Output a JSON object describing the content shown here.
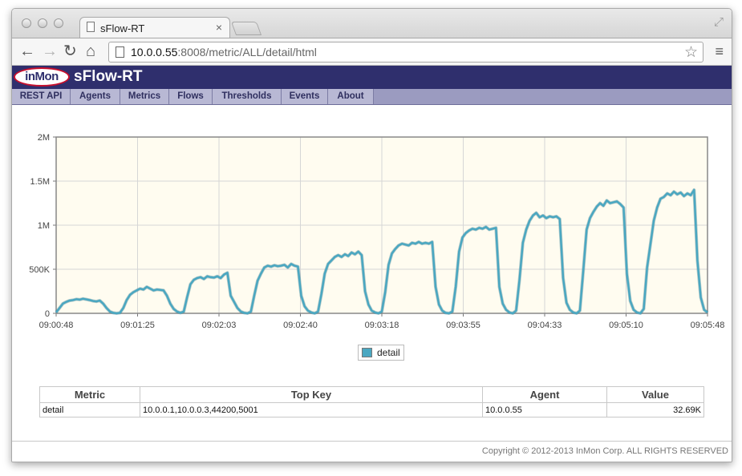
{
  "browser": {
    "tab_title": "sFlow-RT",
    "tab_close": "×",
    "url_host": "10.0.0.55",
    "url_rest": ":8008/metric/ALL/detail/html",
    "back_glyph": "←",
    "forward_glyph": "→",
    "reload_glyph": "↻",
    "home_glyph": "⌂",
    "star_glyph": "☆",
    "menu_glyph": "≡",
    "fullscreen_glyph": "⤢"
  },
  "banner": {
    "logo_text": "inMon",
    "brand": "sFlow-RT"
  },
  "menu": [
    "REST API",
    "Agents",
    "Metrics",
    "Flows",
    "Thresholds",
    "Events",
    "About"
  ],
  "chart_data": {
    "type": "line",
    "x_ticks": [
      "09:00:48",
      "09:01:25",
      "09:02:03",
      "09:02:40",
      "09:03:18",
      "09:03:55",
      "09:04:33",
      "09:05:10",
      "09:05:48"
    ],
    "y_ticks": [
      "0",
      "500K",
      "1M",
      "1.5M",
      "2M"
    ],
    "ylim": [
      0,
      2000000
    ],
    "grid": true,
    "legend": "bottom-center",
    "series": [
      {
        "name": "detail",
        "color": "#4aa7c1",
        "values": [
          10000,
          60000,
          110000,
          130000,
          145000,
          150000,
          160000,
          155000,
          165000,
          158000,
          150000,
          140000,
          135000,
          145000,
          110000,
          60000,
          20000,
          5000,
          0,
          5000,
          60000,
          150000,
          210000,
          240000,
          260000,
          280000,
          270000,
          300000,
          280000,
          260000,
          270000,
          265000,
          260000,
          200000,
          110000,
          50000,
          20000,
          5000,
          20000,
          180000,
          330000,
          380000,
          400000,
          410000,
          390000,
          420000,
          410000,
          405000,
          420000,
          400000,
          440000,
          460000,
          200000,
          130000,
          60000,
          20000,
          5000,
          0,
          20000,
          200000,
          370000,
          450000,
          520000,
          540000,
          530000,
          545000,
          535000,
          540000,
          550000,
          520000,
          560000,
          540000,
          530000,
          200000,
          80000,
          30000,
          10000,
          0,
          20000,
          220000,
          450000,
          560000,
          600000,
          640000,
          660000,
          640000,
          670000,
          650000,
          690000,
          670000,
          700000,
          660000,
          250000,
          100000,
          30000,
          10000,
          0,
          20000,
          240000,
          550000,
          680000,
          730000,
          770000,
          790000,
          780000,
          770000,
          800000,
          790000,
          810000,
          790000,
          800000,
          790000,
          810000,
          300000,
          100000,
          30000,
          5000,
          0,
          20000,
          300000,
          700000,
          860000,
          910000,
          940000,
          960000,
          950000,
          970000,
          960000,
          980000,
          950000,
          960000,
          970000,
          300000,
          110000,
          40000,
          10000,
          0,
          30000,
          380000,
          800000,
          950000,
          1050000,
          1110000,
          1140000,
          1090000,
          1110000,
          1080000,
          1100000,
          1090000,
          1100000,
          1070000,
          400000,
          120000,
          40000,
          10000,
          0,
          30000,
          480000,
          950000,
          1080000,
          1150000,
          1210000,
          1250000,
          1220000,
          1280000,
          1250000,
          1260000,
          1270000,
          1240000,
          1200000,
          450000,
          140000,
          40000,
          10000,
          0,
          50000,
          520000,
          780000,
          1050000,
          1200000,
          1300000,
          1320000,
          1360000,
          1340000,
          1380000,
          1350000,
          1370000,
          1330000,
          1360000,
          1340000,
          1400000,
          600000,
          180000,
          40000,
          10000
        ]
      }
    ]
  },
  "table": {
    "headers": [
      "Metric",
      "Top Key",
      "Agent",
      "Value"
    ],
    "row": {
      "metric": "detail",
      "top_key": "10.0.0.1,10.0.0.3,44200,5001",
      "agent": "10.0.0.55",
      "value": "32.69K"
    }
  },
  "footer": {
    "copyright": "Copyright © 2012-2013 InMon Corp. ALL RIGHTS RESERVED"
  }
}
